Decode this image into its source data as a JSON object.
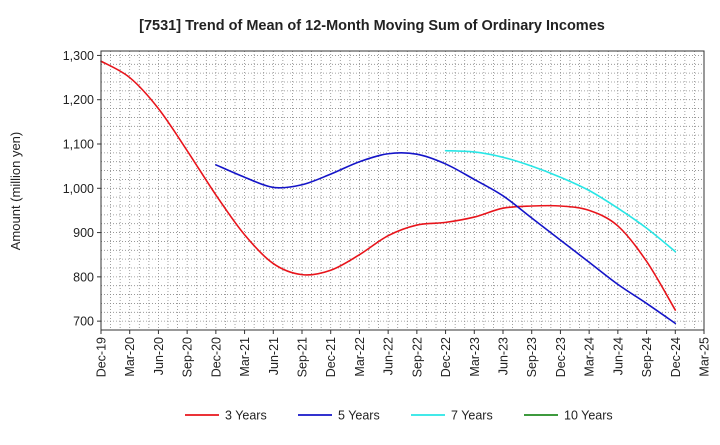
{
  "chart_data": {
    "type": "line",
    "title": "[7531]  Trend of Mean of 12-Month Moving Sum of Ordinary Incomes",
    "xlabel": "",
    "ylabel": "Amount (million yen)",
    "ylim": [
      680,
      1310
    ],
    "yticks": [
      700,
      800,
      900,
      1000,
      1100,
      1200,
      1300
    ],
    "ytick_labels": [
      "700",
      "800",
      "900",
      "1,000",
      "1,100",
      "1,200",
      "1,300"
    ],
    "xticks": [
      "Dec-19",
      "Mar-20",
      "Jun-20",
      "Sep-20",
      "Dec-20",
      "Mar-21",
      "Jun-21",
      "Sep-21",
      "Dec-21",
      "Mar-22",
      "Jun-22",
      "Sep-22",
      "Dec-22",
      "Mar-23",
      "Jun-23",
      "Sep-23",
      "Dec-23",
      "Mar-24",
      "Jun-24",
      "Sep-24",
      "Dec-24",
      "Mar-25"
    ],
    "grid": true,
    "legend_position": "bottom",
    "series": [
      {
        "name": "3 Years",
        "color": "#e8141b",
        "x": [
          0,
          1,
          2,
          3,
          4,
          5,
          6,
          7,
          8,
          9,
          10,
          11,
          12,
          13,
          14,
          15,
          16,
          17,
          18,
          19,
          20
        ],
        "values": [
          1287,
          1250,
          1180,
          1085,
          985,
          895,
          830,
          805,
          815,
          850,
          893,
          917,
          923,
          935,
          955,
          960,
          960,
          950,
          915,
          835,
          725
        ]
      },
      {
        "name": "5 Years",
        "color": "#1414c8",
        "x": [
          4,
          5,
          6,
          7,
          8,
          9,
          10,
          11,
          12,
          13,
          14,
          15,
          16,
          17,
          18,
          19,
          20
        ],
        "values": [
          1053,
          1025,
          1002,
          1008,
          1032,
          1060,
          1078,
          1077,
          1055,
          1020,
          983,
          933,
          883,
          833,
          783,
          740,
          695
        ]
      },
      {
        "name": "7 Years",
        "color": "#28e6e6",
        "x": [
          12,
          13,
          14,
          15,
          16,
          17,
          18,
          19,
          20
        ],
        "values": [
          1085,
          1082,
          1070,
          1050,
          1025,
          995,
          955,
          910,
          857
        ]
      },
      {
        "name": "10 Years",
        "color": "#228b22",
        "x": [],
        "values": []
      }
    ]
  }
}
